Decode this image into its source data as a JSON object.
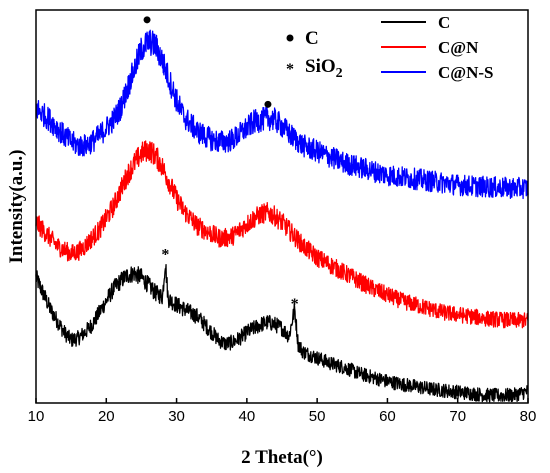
{
  "chart_data": {
    "type": "line",
    "xlabel": "2 Theta(°)",
    "ylabel": "Intensity(a.u.)",
    "xlim": [
      10,
      80
    ],
    "x_ticks": [
      "10",
      "20",
      "30",
      "40",
      "50",
      "60",
      "70",
      "80"
    ],
    "y_ticks_labeled": false,
    "grid": false,
    "legend_position": "top-right",
    "series": [
      {
        "name": "C",
        "color": "#000000",
        "points": [
          [
            10,
            0.32
          ],
          [
            11,
            0.28
          ],
          [
            12,
            0.24
          ],
          [
            13,
            0.21
          ],
          [
            14,
            0.18
          ],
          [
            15,
            0.16
          ],
          [
            16,
            0.165
          ],
          [
            17,
            0.18
          ],
          [
            18,
            0.2
          ],
          [
            19,
            0.23
          ],
          [
            20,
            0.26
          ],
          [
            21,
            0.29
          ],
          [
            22,
            0.31
          ],
          [
            23,
            0.325
          ],
          [
            24,
            0.33
          ],
          [
            25,
            0.32
          ],
          [
            26,
            0.3
          ],
          [
            27,
            0.28
          ],
          [
            28,
            0.27
          ],
          [
            28.4,
            0.36
          ],
          [
            28.8,
            0.265
          ],
          [
            30,
            0.25
          ],
          [
            31,
            0.24
          ],
          [
            32,
            0.23
          ],
          [
            33,
            0.22
          ],
          [
            34,
            0.2
          ],
          [
            35,
            0.18
          ],
          [
            36,
            0.16
          ],
          [
            37,
            0.15
          ],
          [
            38,
            0.155
          ],
          [
            39,
            0.165
          ],
          [
            40,
            0.18
          ],
          [
            41,
            0.19
          ],
          [
            42,
            0.2
          ],
          [
            43,
            0.205
          ],
          [
            44,
            0.2
          ],
          [
            45,
            0.19
          ],
          [
            46,
            0.17
          ],
          [
            46.8,
            0.24
          ],
          [
            47.3,
            0.15
          ],
          [
            48,
            0.13
          ],
          [
            50,
            0.115
          ],
          [
            52,
            0.1
          ],
          [
            54,
            0.09
          ],
          [
            56,
            0.075
          ],
          [
            58,
            0.065
          ],
          [
            60,
            0.055
          ],
          [
            62,
            0.048
          ],
          [
            64,
            0.042
          ],
          [
            66,
            0.036
          ],
          [
            68,
            0.032
          ],
          [
            70,
            0.028
          ],
          [
            72,
            0.024
          ],
          [
            74,
            0.02
          ],
          [
            76,
            0.019
          ],
          [
            78,
            0.02
          ],
          [
            80,
            0.03
          ]
        ]
      },
      {
        "name": "C@N",
        "color": "#ff0000",
        "points": [
          [
            10,
            0.46
          ],
          [
            11,
            0.44
          ],
          [
            12,
            0.42
          ],
          [
            13,
            0.4
          ],
          [
            14,
            0.39
          ],
          [
            15,
            0.38
          ],
          [
            16,
            0.385
          ],
          [
            17,
            0.4
          ],
          [
            18,
            0.42
          ],
          [
            19,
            0.44
          ],
          [
            20,
            0.47
          ],
          [
            21,
            0.5
          ],
          [
            22,
            0.54
          ],
          [
            23,
            0.58
          ],
          [
            24,
            0.61
          ],
          [
            25,
            0.635
          ],
          [
            26,
            0.645
          ],
          [
            27,
            0.63
          ],
          [
            28,
            0.6
          ],
          [
            29,
            0.56
          ],
          [
            30,
            0.52
          ],
          [
            31,
            0.49
          ],
          [
            32,
            0.47
          ],
          [
            33,
            0.45
          ],
          [
            34,
            0.44
          ],
          [
            35,
            0.43
          ],
          [
            36,
            0.42
          ],
          [
            37,
            0.42
          ],
          [
            38,
            0.425
          ],
          [
            39,
            0.44
          ],
          [
            40,
            0.455
          ],
          [
            41,
            0.47
          ],
          [
            42,
            0.48
          ],
          [
            43,
            0.485
          ],
          [
            44,
            0.475
          ],
          [
            45,
            0.46
          ],
          [
            46,
            0.44
          ],
          [
            47,
            0.42
          ],
          [
            48,
            0.4
          ],
          [
            50,
            0.37
          ],
          [
            52,
            0.35
          ],
          [
            54,
            0.33
          ],
          [
            56,
            0.31
          ],
          [
            58,
            0.29
          ],
          [
            60,
            0.275
          ],
          [
            62,
            0.26
          ],
          [
            64,
            0.25
          ],
          [
            66,
            0.24
          ],
          [
            68,
            0.23
          ],
          [
            70,
            0.225
          ],
          [
            72,
            0.22
          ],
          [
            74,
            0.215
          ],
          [
            76,
            0.212
          ],
          [
            78,
            0.21
          ],
          [
            80,
            0.21
          ]
        ]
      },
      {
        "name": "C@N-S",
        "color": "#0000ff",
        "points": [
          [
            10,
            0.75
          ],
          [
            11,
            0.735
          ],
          [
            12,
            0.72
          ],
          [
            13,
            0.7
          ],
          [
            14,
            0.68
          ],
          [
            15,
            0.665
          ],
          [
            16,
            0.655
          ],
          [
            17,
            0.655
          ],
          [
            18,
            0.665
          ],
          [
            19,
            0.68
          ],
          [
            20,
            0.7
          ],
          [
            21,
            0.72
          ],
          [
            22,
            0.75
          ],
          [
            23,
            0.8
          ],
          [
            24,
            0.85
          ],
          [
            25,
            0.9
          ],
          [
            26,
            0.92
          ],
          [
            27,
            0.91
          ],
          [
            28,
            0.87
          ],
          [
            29,
            0.82
          ],
          [
            30,
            0.77
          ],
          [
            31,
            0.73
          ],
          [
            32,
            0.71
          ],
          [
            33,
            0.69
          ],
          [
            34,
            0.68
          ],
          [
            35,
            0.67
          ],
          [
            36,
            0.665
          ],
          [
            37,
            0.665
          ],
          [
            38,
            0.67
          ],
          [
            39,
            0.685
          ],
          [
            40,
            0.7
          ],
          [
            41,
            0.715
          ],
          [
            42,
            0.72
          ],
          [
            43,
            0.725
          ],
          [
            44,
            0.72
          ],
          [
            45,
            0.705
          ],
          [
            46,
            0.685
          ],
          [
            47,
            0.67
          ],
          [
            48,
            0.655
          ],
          [
            50,
            0.64
          ],
          [
            52,
            0.625
          ],
          [
            54,
            0.61
          ],
          [
            56,
            0.6
          ],
          [
            58,
            0.59
          ],
          [
            60,
            0.58
          ],
          [
            62,
            0.575
          ],
          [
            64,
            0.57
          ],
          [
            66,
            0.565
          ],
          [
            68,
            0.56
          ],
          [
            70,
            0.555
          ],
          [
            72,
            0.552
          ],
          [
            74,
            0.55
          ],
          [
            76,
            0.548
          ],
          [
            78,
            0.547
          ],
          [
            80,
            0.547
          ]
        ]
      }
    ],
    "annotations": [
      {
        "marker": "dot",
        "x": 25.8,
        "y": 0.975
      },
      {
        "marker": "dot",
        "x": 43,
        "y": 0.76
      },
      {
        "marker": "star",
        "x": 28.4,
        "y": 0.385
      },
      {
        "marker": "star",
        "x": 46.8,
        "y": 0.26
      }
    ],
    "marker_key": [
      {
        "marker": "dot",
        "label": "C"
      },
      {
        "marker": "star",
        "label": "SiO",
        "sub": "2"
      }
    ]
  }
}
